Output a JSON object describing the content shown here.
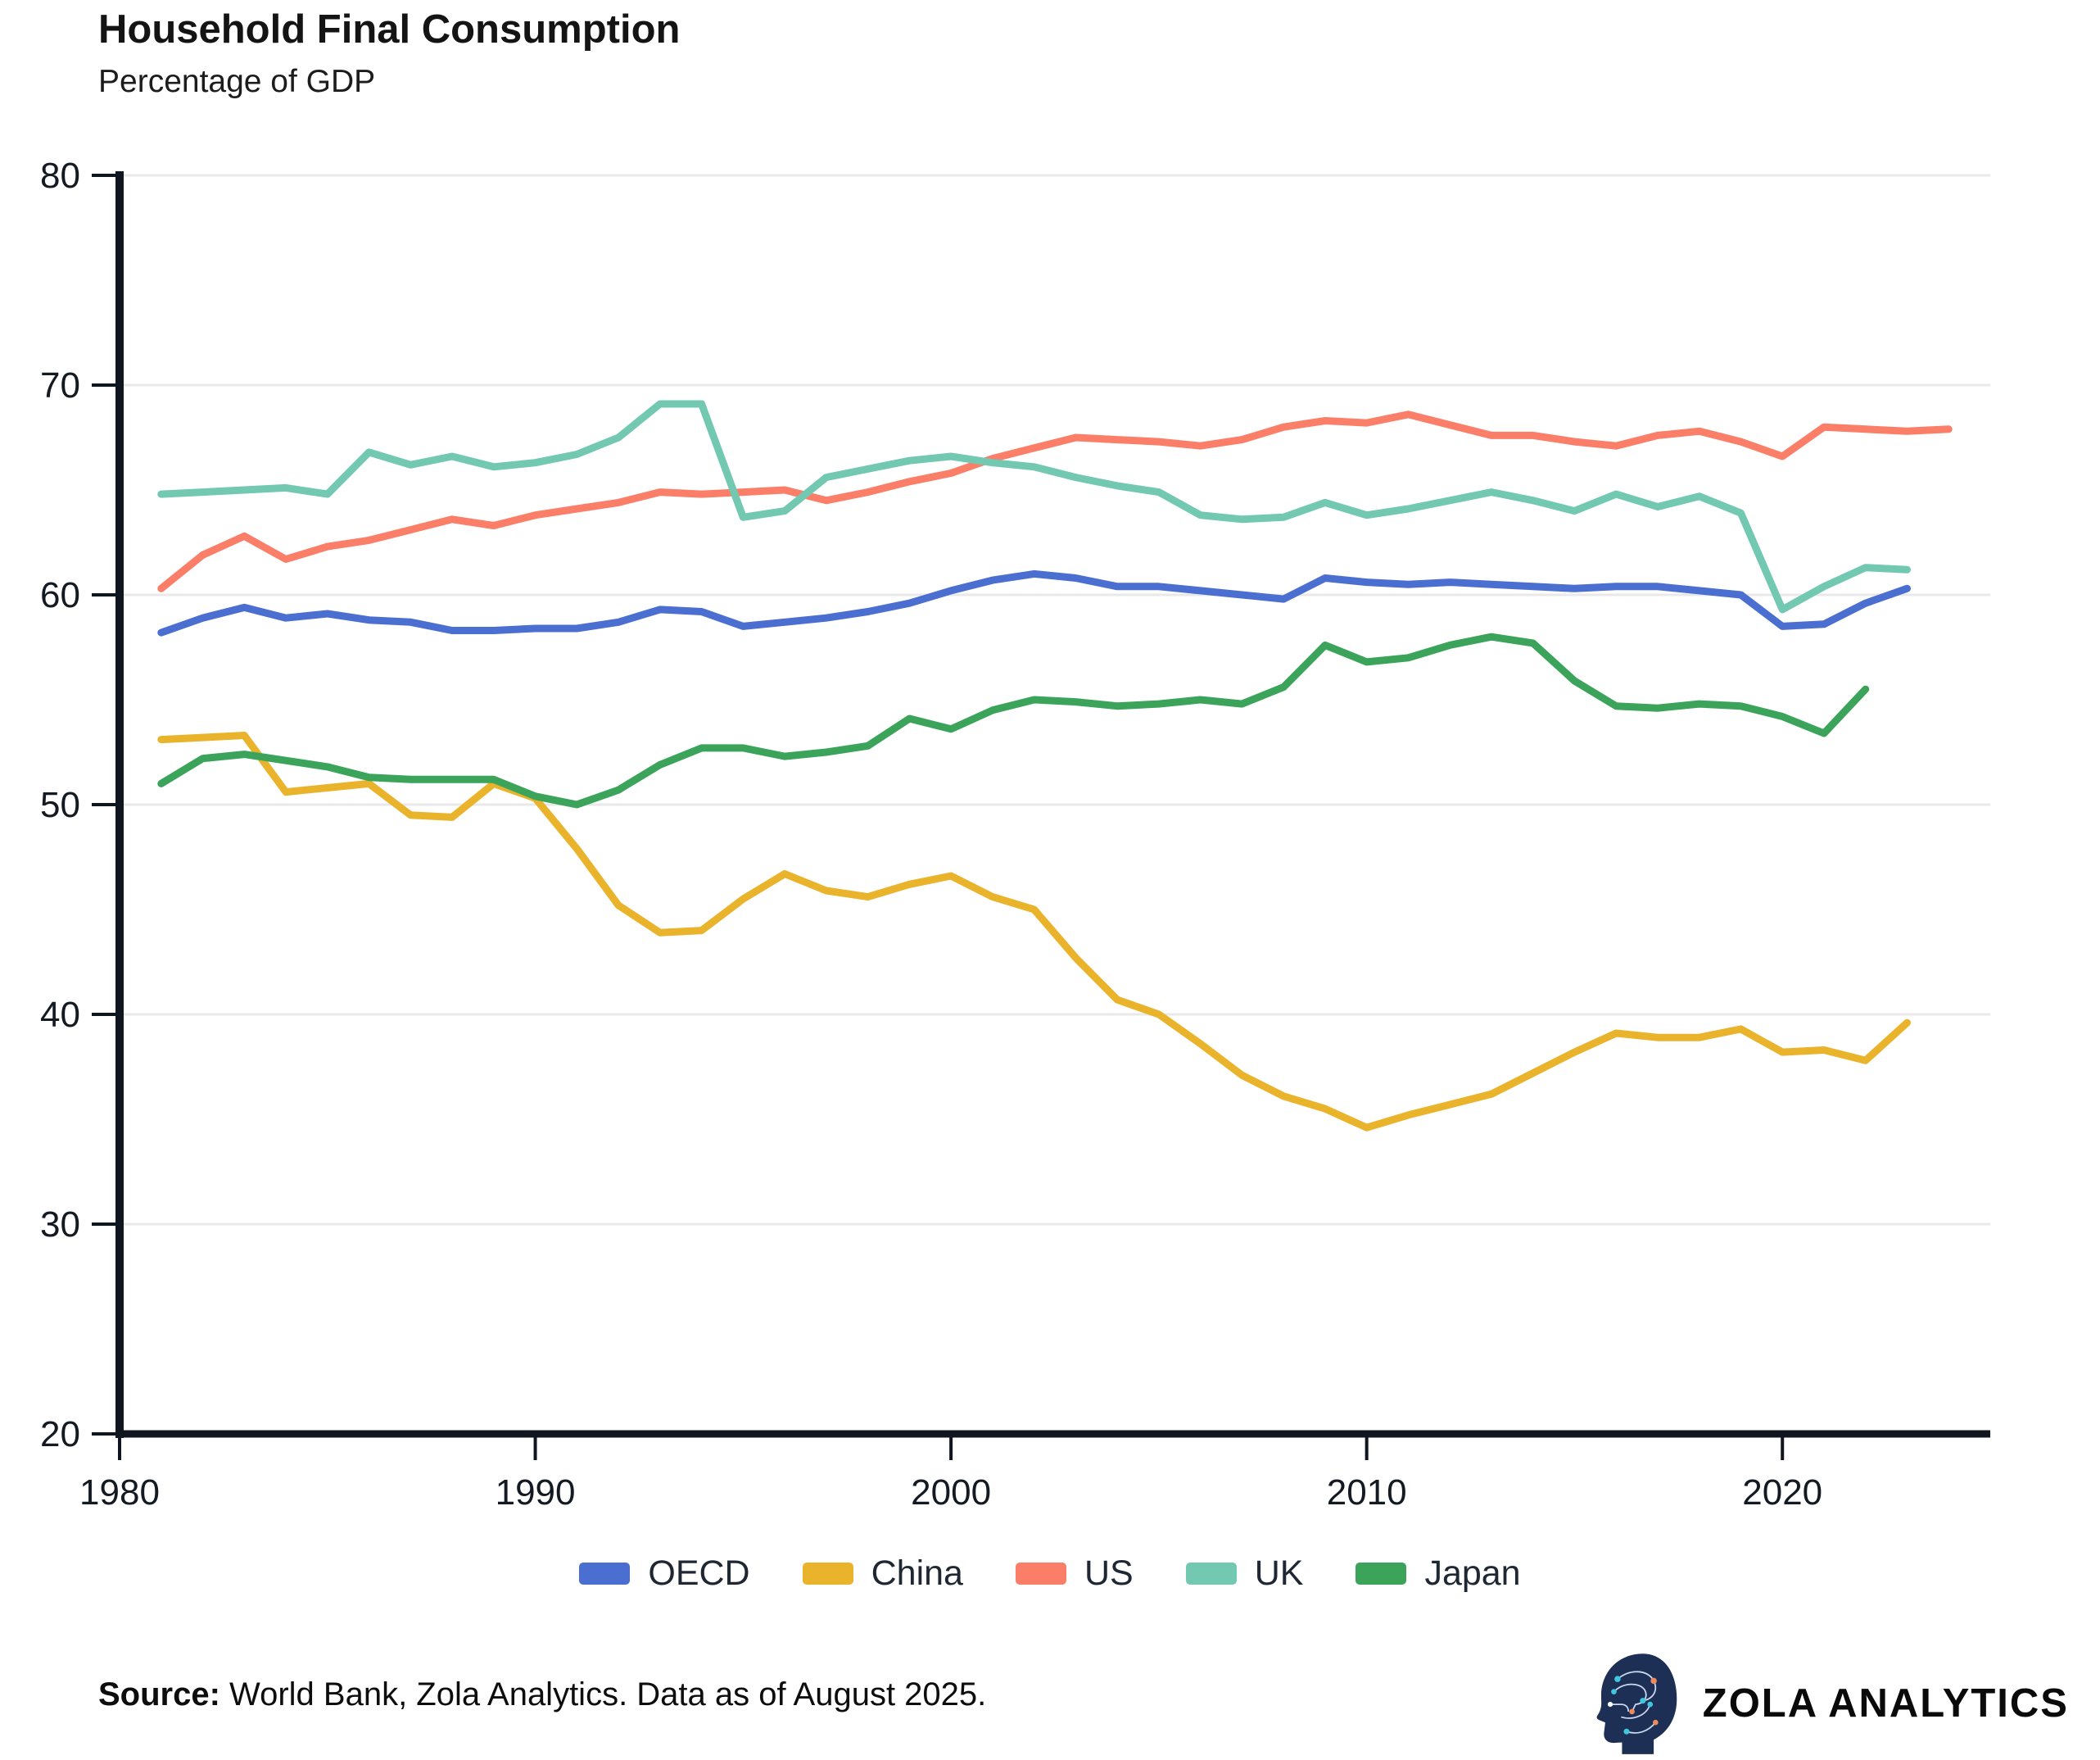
{
  "header": {
    "title": "Household Final Consumption",
    "subtitle": "Percentage of GDP"
  },
  "footer": {
    "source_label": "Source:",
    "source_text": " World Bank, Zola Analytics. Data as of August 2025.",
    "brand": "ZOLA ANALYTICS"
  },
  "style": {
    "axis_color": "#10161f",
    "grid_color": "#e9e9e9",
    "tick_text_color": "#141a22",
    "background": "#ffffff",
    "logo_navy": "#1d2f55",
    "logo_cyan": "#3fc7df",
    "logo_orange": "#ef8a5e"
  },
  "chart_data": {
    "type": "line",
    "title": "Household Final Consumption",
    "subtitle": "Percentage of GDP",
    "xlabel": "",
    "ylabel": "Percentage of GDP",
    "xlim": [
      1980,
      2025
    ],
    "ylim": [
      20,
      80
    ],
    "x_ticks": [
      1980,
      1990,
      2000,
      2010,
      2020
    ],
    "y_ticks": [
      20,
      30,
      40,
      50,
      60,
      70,
      80
    ],
    "grid": "horizontal",
    "legend_position": "bottom",
    "line_width": 9,
    "series": [
      {
        "name": "OECD",
        "color": "#4a6fd0",
        "start_year": 1981,
        "values": [
          58.2,
          58.9,
          59.4,
          58.9,
          59.1,
          58.8,
          58.7,
          58.3,
          58.3,
          58.4,
          58.4,
          58.7,
          59.3,
          59.2,
          58.5,
          58.7,
          58.9,
          59.2,
          59.6,
          60.2,
          60.7,
          61.0,
          60.8,
          60.4,
          60.4,
          60.2,
          60.0,
          59.8,
          60.8,
          60.6,
          60.5,
          60.6,
          60.5,
          60.4,
          60.3,
          60.4,
          60.4,
          60.2,
          60.0,
          58.5,
          58.6,
          59.6,
          60.3
        ]
      },
      {
        "name": "China",
        "color": "#eab32c",
        "start_year": 1981,
        "values": [
          53.1,
          53.2,
          53.3,
          50.6,
          50.8,
          51.0,
          49.5,
          49.4,
          51.0,
          50.3,
          47.9,
          45.2,
          43.9,
          44.0,
          45.5,
          46.7,
          45.9,
          45.6,
          46.2,
          46.6,
          45.6,
          45.0,
          42.7,
          40.7,
          40.0,
          38.6,
          37.1,
          36.1,
          35.5,
          34.6,
          35.2,
          35.7,
          36.2,
          37.2,
          38.2,
          39.1,
          38.9,
          38.9,
          39.3,
          38.2,
          38.3,
          37.8,
          39.6
        ]
      },
      {
        "name": "US",
        "color": "#fa7e68",
        "start_year": 1981,
        "values": [
          60.3,
          61.9,
          62.8,
          61.7,
          62.3,
          62.6,
          63.1,
          63.6,
          63.3,
          63.8,
          64.1,
          64.4,
          64.9,
          64.8,
          64.9,
          65.0,
          64.5,
          64.9,
          65.4,
          65.8,
          66.5,
          67.0,
          67.5,
          67.4,
          67.3,
          67.1,
          67.4,
          68.0,
          68.3,
          68.2,
          68.6,
          68.1,
          67.6,
          67.6,
          67.3,
          67.1,
          67.6,
          67.8,
          67.3,
          66.6,
          68.0,
          67.9,
          67.8,
          67.9
        ]
      },
      {
        "name": "UK",
        "color": "#72c8b1",
        "start_year": 1981,
        "values": [
          64.8,
          64.9,
          65.0,
          65.1,
          64.8,
          66.8,
          66.2,
          66.6,
          66.1,
          66.3,
          66.7,
          67.5,
          69.1,
          69.1,
          63.7,
          64.0,
          65.6,
          66.0,
          66.4,
          66.6,
          66.3,
          66.1,
          65.6,
          65.2,
          64.9,
          63.8,
          63.6,
          63.7,
          64.4,
          63.8,
          64.1,
          64.5,
          64.9,
          64.5,
          64.0,
          64.8,
          64.2,
          64.7,
          63.9,
          59.3,
          60.4,
          61.3,
          61.2
        ]
      },
      {
        "name": "Japan",
        "color": "#3ba45a",
        "start_year": 1981,
        "values": [
          51.0,
          52.2,
          52.4,
          52.1,
          51.8,
          51.3,
          51.2,
          51.2,
          51.2,
          50.4,
          50.0,
          50.7,
          51.9,
          52.7,
          52.7,
          52.3,
          52.5,
          52.8,
          54.1,
          53.6,
          54.5,
          55.0,
          54.9,
          54.7,
          54.8,
          55.0,
          54.8,
          55.6,
          57.6,
          56.8,
          57.0,
          57.6,
          58.0,
          57.7,
          55.9,
          54.7,
          54.6,
          54.8,
          54.7,
          54.2,
          53.4,
          55.5
        ]
      }
    ]
  }
}
